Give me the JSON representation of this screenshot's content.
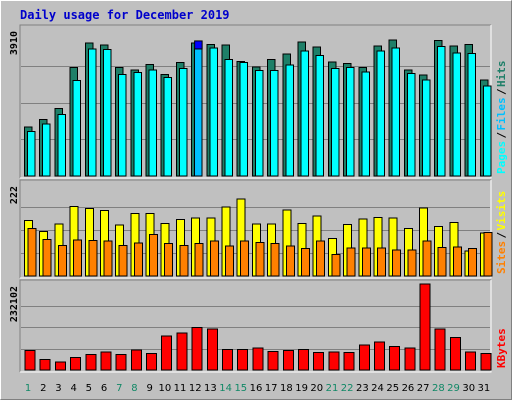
{
  "chart_data": {
    "type": "bar",
    "title": "Daily usage for December 2019",
    "categories": [
      "1",
      "2",
      "3",
      "4",
      "5",
      "6",
      "7",
      "8",
      "9",
      "10",
      "11",
      "12",
      "13",
      "14",
      "15",
      "16",
      "17",
      "18",
      "19",
      "20",
      "21",
      "22",
      "23",
      "24",
      "25",
      "26",
      "27",
      "28",
      "29",
      "30",
      "31"
    ],
    "weekend_days": [
      "1",
      "7",
      "8",
      "14",
      "15",
      "21",
      "22",
      "28",
      "29"
    ],
    "panels": [
      {
        "name": "hits-files-pages",
        "ymax_label": "3910",
        "ylim": [
          0,
          3910
        ],
        "series": [
          {
            "name": "Hits",
            "values": [
              1300,
              1500,
              1800,
              2880,
              3540,
              3490,
              2880,
              2820,
              2970,
              2700,
              3020,
              3540,
              3500,
              3490,
              3040,
              2900,
              3100,
              3240,
              3560,
              3430,
              3030,
              2990,
              2880,
              3460,
              3620,
              2820,
              2690,
              3600,
              3460,
              3500,
              2560
            ]
          },
          {
            "name": "Files",
            "values": [
              1190,
              1380,
              1630,
              2540,
              3380,
              3360,
              2700,
              2750,
              2820,
              2620,
              2860,
              3380,
              3250,
              3100,
              3020,
              2800,
              2800,
              2950,
              3330,
              3200,
              2860,
              2880,
              2770,
              3330,
              3410,
              2720,
              2550,
              3450,
              3270,
              3260,
              2390
            ]
          },
          {
            "name": "Pages",
            "values": [
              1190,
              1380,
              1630,
              2540,
              3380,
              3360,
              2700,
              2750,
              2820,
              2620,
              2860,
              3380,
              3400,
              3100,
              3020,
              2800,
              2800,
              2950,
              3330,
              3200,
              2860,
              2880,
              2770,
              3330,
              3410,
              2720,
              2550,
              3450,
              3270,
              3260,
              2390
            ]
          }
        ],
        "legend": [
          "Pages",
          "Files",
          "Hits"
        ]
      },
      {
        "name": "visits-sites",
        "ymax_label": "222",
        "ylim": [
          0,
          222
        ],
        "series": [
          {
            "name": "Visits",
            "values": [
              134,
              107,
              125,
              168,
              163,
              158,
              123,
              151,
              151,
              127,
              136,
              140,
              140,
              166,
              186,
              125,
              125,
              159,
              127,
              145,
              90,
              124,
              138,
              141,
              140,
              115,
              164,
              119,
              129,
              60,
              104
            ]
          },
          {
            "name": "Sites",
            "values": [
              115,
              88,
              73,
              87,
              86,
              84,
              74,
              80,
              100,
              79,
              73,
              78,
              84,
              72,
              85,
              81,
              79,
              72,
              66,
              84,
              52,
              67,
              67,
              67,
              63,
              63,
              84,
              69,
              70,
              66,
              105
            ]
          }
        ],
        "legend": [
          "Sites",
          "Visits"
        ]
      },
      {
        "name": "kbytes",
        "ymax_label": "232102",
        "ylim": [
          0,
          232102
        ],
        "series": [
          {
            "name": "KBytes",
            "values": [
              53000,
              28000,
              22000,
              34000,
              42000,
              48000,
              42000,
              54000,
              44000,
              92000,
              100000,
              115000,
              110000,
              56000,
              55000,
              60000,
              50000,
              52000,
              55000,
              47000,
              48000,
              47000,
              68000,
              75000,
              64000,
              60000,
              232102,
              110000,
              88000,
              48000,
              45000
            ]
          }
        ],
        "legend": [
          "KBytes"
        ]
      }
    ],
    "colors": {
      "background": "#c0c0c0",
      "hits": "#1e7f68",
      "files": "#00c0ff",
      "pages": "#00ffff",
      "visits": "#ffff00",
      "sites": "#ff8000",
      "kbytes": "#ff0000",
      "title": "#0000cc",
      "weekday": "#000000",
      "weekend": "#118866",
      "highlight": "#0000ff"
    },
    "highlight": {
      "day": "12",
      "series": "Pages"
    }
  }
}
